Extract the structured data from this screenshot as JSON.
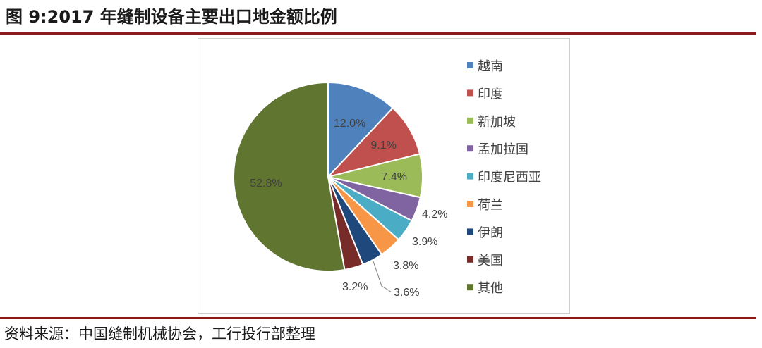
{
  "figure": {
    "title": "图 9:2017 年缝制设备主要出口地金额比例",
    "source": "资料来源：中国缝制机械协会，工行投行部整理"
  },
  "colors": {
    "rule": "#8b1a1a"
  },
  "chart_data": {
    "type": "pie",
    "title": "",
    "legend_placement": "right",
    "slices": [
      {
        "label": "越南",
        "value": 12.0,
        "display": "12.0%",
        "color": "#4f81bd"
      },
      {
        "label": "印度",
        "value": 9.1,
        "display": "9.1%",
        "color": "#c0504d"
      },
      {
        "label": "新加坡",
        "value": 7.4,
        "display": "7.4%",
        "color": "#9bbb59"
      },
      {
        "label": "孟加拉国",
        "value": 4.2,
        "display": "4.2%",
        "color": "#8064a2"
      },
      {
        "label": "印度尼西亚",
        "value": 3.9,
        "display": "3.9%",
        "color": "#4bacc6"
      },
      {
        "label": "荷兰",
        "value": 3.8,
        "display": "3.8%",
        "color": "#f79646"
      },
      {
        "label": "伊朗",
        "value": 3.6,
        "display": "3.6%",
        "color": "#1f497d"
      },
      {
        "label": "美国",
        "value": 3.2,
        "display": "3.2%",
        "color": "#772c2a"
      },
      {
        "label": "其他",
        "value": 52.8,
        "display": "52.8%",
        "color": "#5f7530"
      }
    ]
  }
}
